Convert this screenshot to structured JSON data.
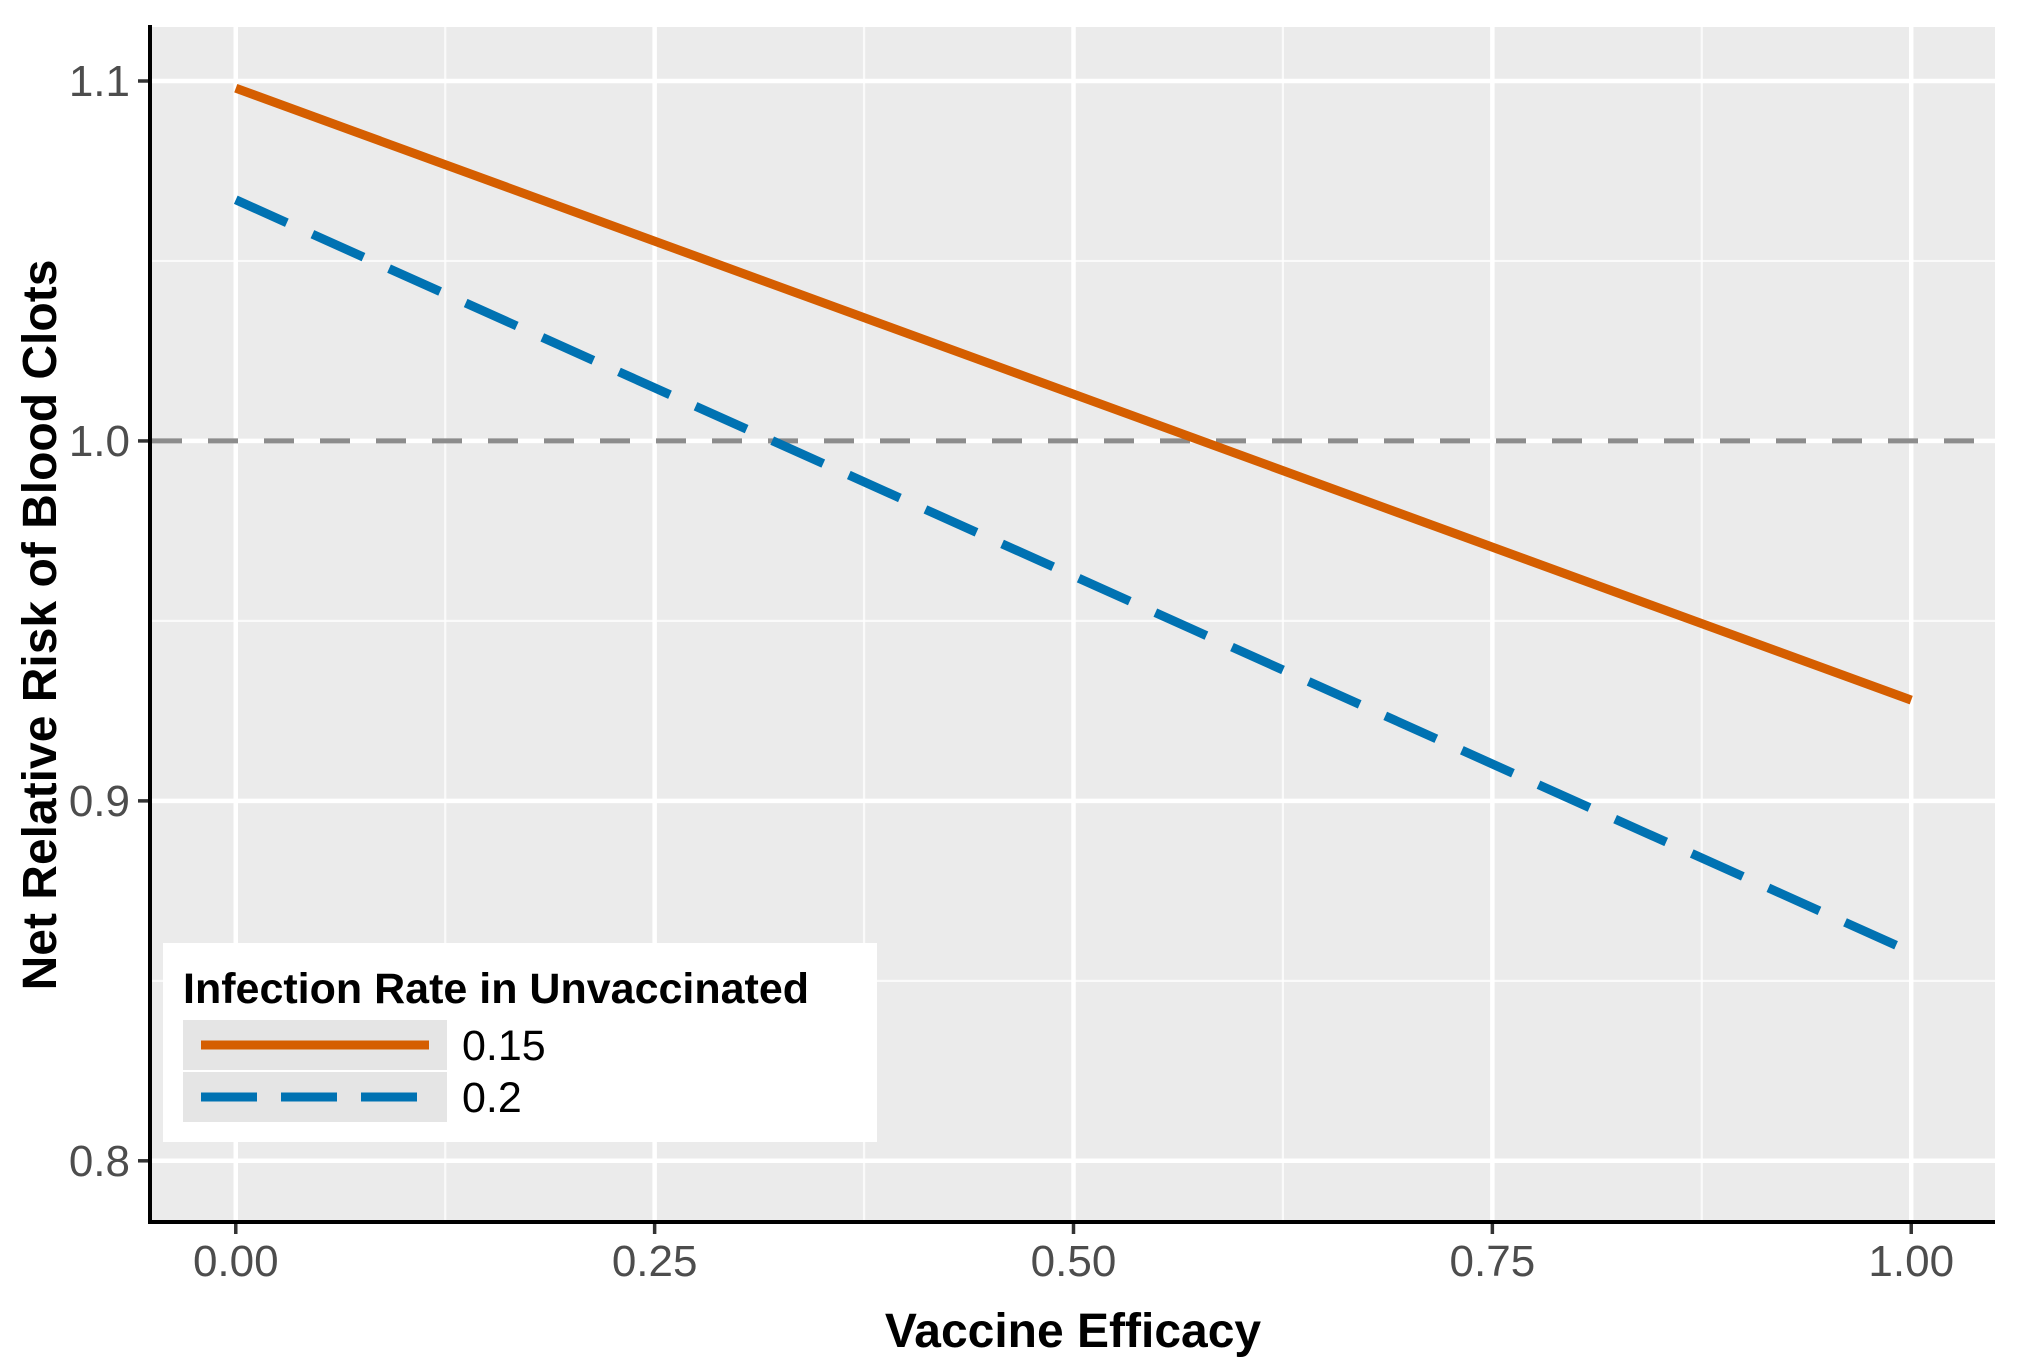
{
  "chart_data": {
    "type": "line",
    "title": "",
    "xlabel": "Vaccine Efficacy",
    "ylabel": "Net Relative Risk of Blood Clots",
    "xlim": [
      -0.05,
      1.05
    ],
    "ylim": [
      0.783,
      1.115
    ],
    "x_ticks": [
      0.0,
      0.25,
      0.5,
      0.75,
      1.0
    ],
    "x_tick_labels": [
      "0.00",
      "0.25",
      "0.50",
      "0.75",
      "1.00"
    ],
    "x_minor_ticks": [
      0.125,
      0.375,
      0.625,
      0.875
    ],
    "y_ticks": [
      0.8,
      0.9,
      1.0,
      1.1
    ],
    "y_tick_labels": [
      "0.8",
      "0.9",
      "1.0",
      "1.1"
    ],
    "y_minor_ticks": [
      0.85,
      0.95,
      1.05
    ],
    "grid": true,
    "reference_line": {
      "y": 1.0,
      "style": "dashed",
      "color": "#8c8c8c"
    },
    "series": [
      {
        "name": "0.15",
        "style": "solid",
        "color": "#d55e00",
        "x": [
          0.0,
          1.0
        ],
        "y": [
          1.098,
          0.928
        ]
      },
      {
        "name": "0.2",
        "style": "dashed",
        "color": "#0072b2",
        "x": [
          0.0,
          1.0
        ],
        "y": [
          1.067,
          0.858
        ]
      }
    ],
    "legend": {
      "title": "Infection Rate in Unvaccinated",
      "position": "inside-bottom-left",
      "entries": [
        {
          "label": "0.15",
          "style": "solid",
          "color": "#d55e00"
        },
        {
          "label": "0.2",
          "style": "dashed",
          "color": "#0072b2"
        }
      ]
    }
  },
  "colors": {
    "panel_background": "#ebebeb",
    "grid_major": "#ffffff",
    "grid_minor": "#f5f5f5",
    "axis_line": "#000000",
    "tick_label": "#4d4d4d",
    "legend_background": "#ffffff",
    "legend_key_background": "#e5e5e5"
  }
}
